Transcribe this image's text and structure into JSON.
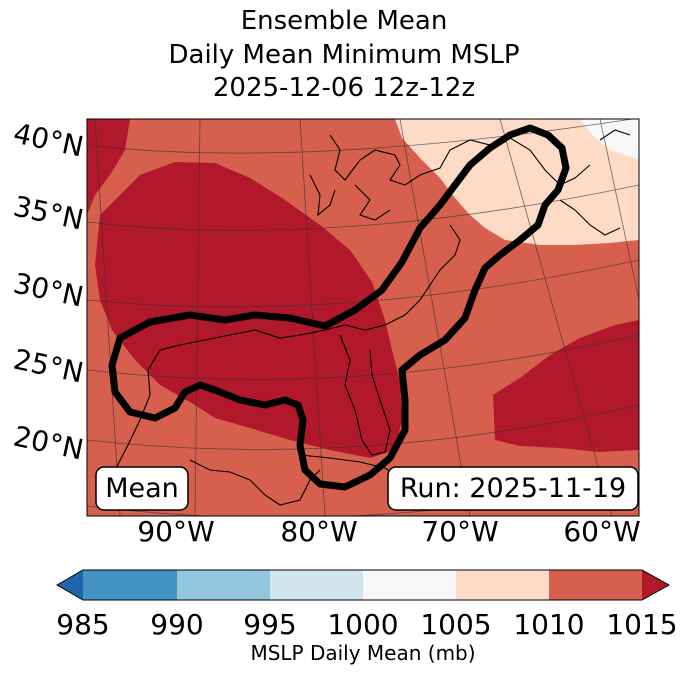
{
  "title": {
    "line1": "Ensemble Mean",
    "line2": "Daily Mean Minimum MSLP",
    "line3": "2025-12-06 12z-12z"
  },
  "map": {
    "lat_labels": [
      "40°N",
      "35°N",
      "30°N",
      "25°N",
      "20°N"
    ],
    "lon_labels": [
      "90°W",
      "80°W",
      "70°W",
      "60°W"
    ],
    "mean_label": "Mean",
    "run_label": "Run: 2025-11-19"
  },
  "colorbar": {
    "ticks": [
      "985",
      "990",
      "995",
      "1000",
      "1005",
      "1010",
      "1015"
    ],
    "label": "MSLP Daily Mean (mb)",
    "colors": [
      "#2166ac",
      "#4393c3",
      "#92c5de",
      "#d1e5f0",
      "#f7f7f7",
      "#fddbc7",
      "#d6604d",
      "#b2182b"
    ]
  },
  "colors": {
    "high": "#b2182b",
    "mid": "#d6604d",
    "low": "#fddbc7",
    "lowest": "#f7f7f7",
    "contour": "#000000"
  }
}
